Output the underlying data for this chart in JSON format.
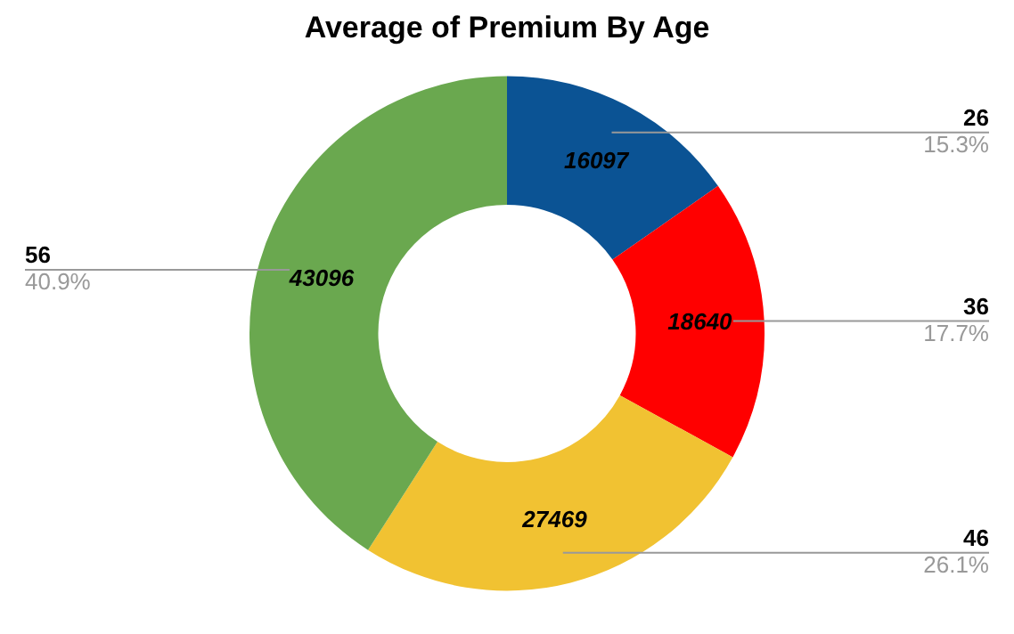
{
  "chart_data": {
    "type": "donut",
    "title": "Average of Premium By Age",
    "categories": [
      "26",
      "36",
      "46",
      "56"
    ],
    "values": [
      16097,
      18640,
      27469,
      43096
    ],
    "colors": [
      "#0b5394",
      "#ff0000",
      "#f1c232",
      "#6aa84f"
    ],
    "data_labels": true,
    "legend": false,
    "annotations": [
      {
        "text": "15.3%",
        "x": "26"
      },
      {
        "text": "17.7%",
        "x": "36"
      },
      {
        "text": "26.1%",
        "x": "46"
      },
      {
        "text": "40.9%",
        "x": "56"
      }
    ]
  }
}
